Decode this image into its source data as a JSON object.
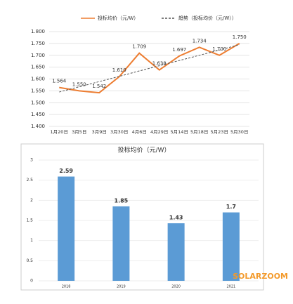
{
  "chart_data": [
    {
      "type": "line",
      "categories": [
        "1月20日",
        "3月5日",
        "3月9日",
        "3月30日",
        "4月6日",
        "4月29日",
        "5月14日",
        "5月18日",
        "5月23日",
        "5月30日"
      ],
      "series": [
        {
          "name": "投标均价（元/W）",
          "color": "#ed7d31",
          "values": [
            1.564,
            1.55,
            1.542,
            1.61,
            1.709,
            1.638,
            1.697,
            1.734,
            1.7,
            1.75
          ],
          "value_labels": [
            "1.564",
            "1.550",
            "1.542",
            "1.610",
            "1.709",
            "1.638",
            "1.697",
            "1.734",
            "1.700",
            "1.750"
          ]
        },
        {
          "name": "趋势（投标均价（元/W））",
          "color": "#555555",
          "dashed": true,
          "values": [
            1.545,
            1.567,
            1.589,
            1.611,
            1.634,
            1.656,
            1.678,
            1.7,
            1.722,
            1.745
          ]
        }
      ],
      "ylim": [
        1.4,
        1.8
      ],
      "yticks": [
        {
          "value": 1.4,
          "label": "1.400"
        },
        {
          "value": 1.45,
          "label": "1.450"
        },
        {
          "value": 1.5,
          "label": "1.500"
        },
        {
          "value": 1.55,
          "label": "1.550"
        },
        {
          "value": 1.6,
          "label": "1.600"
        },
        {
          "value": 1.65,
          "label": "1.650"
        },
        {
          "value": 1.7,
          "label": "1.700"
        },
        {
          "value": 1.75,
          "label": "1.750"
        },
        {
          "value": 1.8,
          "label": "1.800"
        }
      ]
    },
    {
      "type": "bar",
      "title": "投标均价（元/W）",
      "categories": [
        "2018",
        "2019",
        "2020",
        "2021"
      ],
      "values": [
        2.59,
        1.85,
        1.43,
        1.7
      ],
      "color": "#5b9bd5",
      "ylim": [
        0,
        3
      ],
      "yticks": [
        0,
        0.5,
        1,
        1.5,
        2,
        2.5,
        3
      ],
      "watermark": "SOLARZOOM"
    }
  ]
}
